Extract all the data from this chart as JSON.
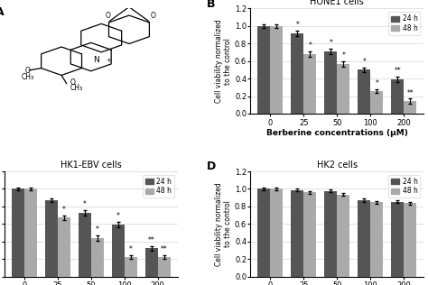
{
  "panel_B": {
    "title": "HONE1 cells",
    "categories": [
      "0",
      "25",
      "50",
      "100",
      "200"
    ],
    "data_24h": [
      1.0,
      0.92,
      0.71,
      0.5,
      0.39
    ],
    "data_48h": [
      1.0,
      0.68,
      0.57,
      0.26,
      0.14
    ],
    "err_24h": [
      0.02,
      0.03,
      0.03,
      0.03,
      0.03
    ],
    "err_48h": [
      0.02,
      0.03,
      0.03,
      0.02,
      0.03
    ],
    "stars_24h": [
      "",
      "*",
      "*",
      "*",
      "**"
    ],
    "stars_48h": [
      "",
      "*",
      "*",
      "*",
      "**"
    ]
  },
  "panel_C": {
    "title": "HK1-EBV cells",
    "categories": [
      "0",
      "25",
      "50",
      "100",
      "200"
    ],
    "data_24h": [
      1.0,
      0.87,
      0.73,
      0.59,
      0.32
    ],
    "data_48h": [
      1.0,
      0.67,
      0.44,
      0.22,
      0.22
    ],
    "err_24h": [
      0.02,
      0.02,
      0.03,
      0.03,
      0.03
    ],
    "err_48h": [
      0.02,
      0.03,
      0.03,
      0.02,
      0.02
    ],
    "stars_24h": [
      "",
      "",
      "*",
      "*",
      "**"
    ],
    "stars_48h": [
      "",
      "*",
      "*",
      "*",
      "**"
    ]
  },
  "panel_D": {
    "title": "HK2 cells",
    "categories": [
      "0",
      "25",
      "50",
      "100",
      "200"
    ],
    "data_24h": [
      1.0,
      0.985,
      0.975,
      0.87,
      0.855
    ],
    "data_48h": [
      1.0,
      0.96,
      0.935,
      0.845,
      0.835
    ],
    "err_24h": [
      0.015,
      0.015,
      0.015,
      0.02,
      0.02
    ],
    "err_48h": [
      0.015,
      0.015,
      0.015,
      0.02,
      0.02
    ],
    "stars_24h": [
      "",
      "",
      "",
      "",
      ""
    ],
    "stars_48h": [
      "",
      "",
      "",
      "",
      ""
    ]
  },
  "color_24h": "#555555",
  "color_48h": "#aaaaaa",
  "ylabel": "Cell viability normalized\nto the control",
  "xlabel": "Berberine concentrations (μM)",
  "ylim": [
    0,
    1.2
  ],
  "yticks": [
    0,
    0.2,
    0.4,
    0.6,
    0.8,
    1.0,
    1.2
  ],
  "label_24h": "24 h",
  "label_48h": "48 h"
}
